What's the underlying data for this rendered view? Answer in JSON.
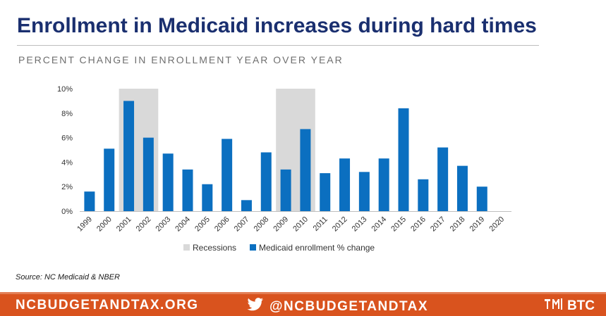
{
  "title": "Enrollment in Medicaid increases during hard times",
  "subtitle": "PERCENT CHANGE IN ENROLLMENT YEAR OVER YEAR",
  "source": "Source: NC Medicaid & NBER",
  "footer": {
    "website": "NCBUDGETANDTAX.ORG",
    "twitter": "@NCBUDGETANDTAX",
    "logo_text": "BTC",
    "twitter_icon": "twitter-bird-icon",
    "logo_icon": "btc-logo-icon"
  },
  "colors": {
    "title": "#1a2f6f",
    "bar": "#0b6fc0",
    "recession": "#d9d9d9",
    "footer_bg": "#d9531e"
  },
  "chart_data": {
    "type": "bar",
    "categories": [
      "1999",
      "2000",
      "2001",
      "2002",
      "2003",
      "2004",
      "2005",
      "2006",
      "2007",
      "2008",
      "2009",
      "2010",
      "2011",
      "2012",
      "2013",
      "2014",
      "2015",
      "2016",
      "2017",
      "2018",
      "2019",
      "2020"
    ],
    "series": [
      {
        "name": "Medicaid enrollment % change",
        "values": [
          1.6,
          5.1,
          9.0,
          6.0,
          4.7,
          3.4,
          2.2,
          5.9,
          0.9,
          4.8,
          3.4,
          6.7,
          3.1,
          4.3,
          3.2,
          4.3,
          8.4,
          2.6,
          5.2,
          3.7,
          2.0,
          null
        ]
      }
    ],
    "recessions": {
      "name": "Recessions",
      "periods": [
        [
          "2001",
          "2002"
        ],
        [
          "2009",
          "2010"
        ]
      ]
    },
    "yticks": [
      "0%",
      "2%",
      "4%",
      "6%",
      "8%",
      "10%"
    ],
    "ylim": [
      0,
      10
    ],
    "grid": false,
    "legend": {
      "position": "bottom",
      "items": [
        "Recessions",
        "Medicaid enrollment % change"
      ]
    },
    "xlabel": "",
    "ylabel": ""
  }
}
